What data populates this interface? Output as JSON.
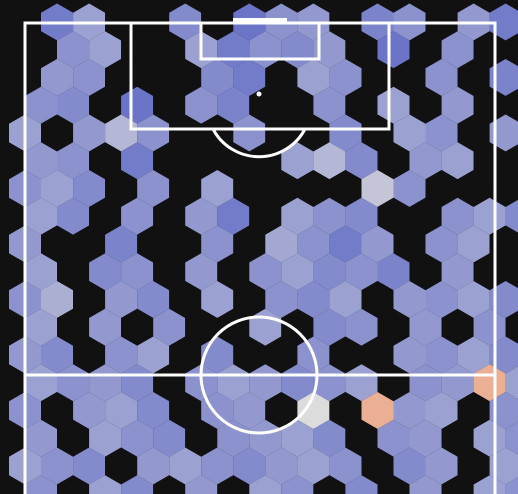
{
  "pitch": {
    "background": "#111111",
    "line_color": "#ffffff",
    "view": "attacking-half-plus-part-of-own-half"
  },
  "heatmap": {
    "type": "hexbin",
    "low_color": "#4a5fd0",
    "mid_color": "#dcdcdc",
    "high_color": "#f0a07a",
    "empty_color": "#111111",
    "rows": [
      "...##.###.##.##.#.#.",
      ".##..#####.#.#..###.",
      ".##...##.##..#.##.#.",
      "##.#.##..#.#.#..#.#.",
      "#.###..#..#.##.#.###",
      "##.#....###.##..#.##",
      "###.#.#....##...#.#.",
      "##.#.##.###..###.##.",
      "#..#..#.####.##.##.#",
      "#.##.#.#####.#....##",
      "##.##.#.###.####.###",
      "#.#.#..#.##.#.#.####",
      "##.##.#..#..####.###",
      "####.######.#####.##",
      "#.###.##.#.###.#.#..",
      "#.###.####.##.#####.",
      "###.#######.##.##..#",
      "#.##.#.##.#.#.##.##."
    ],
    "values": [
      [
        0,
        0.35,
        0.6,
        0,
        0,
        0.45,
        0,
        0.3,
        0.5,
        0.55,
        0,
        0.4,
        0.5,
        0,
        0.55,
        0.35,
        0,
        0.5,
        0,
        0
      ],
      [
        0,
        0.5,
        0.6,
        0,
        0,
        0.6,
        0.35,
        0.5,
        0.45,
        0.55,
        0,
        0.3,
        0,
        0.5,
        0,
        0,
        0.45,
        0.5,
        0.4,
        0
      ],
      [
        0,
        0.55,
        0.5,
        0,
        0,
        0,
        0.45,
        0.35,
        0,
        0.6,
        0.5,
        0,
        0,
        0.5,
        0,
        0.4,
        0.3,
        0,
        0.5,
        0
      ],
      [
        0.5,
        0.45,
        0,
        0.3,
        0,
        0.5,
        0.4,
        0,
        0,
        0.5,
        0,
        0.6,
        0,
        0.55,
        0,
        0,
        0.5,
        0,
        0.6,
        0
      ],
      [
        0.6,
        0,
        0.55,
        0.75,
        0.5,
        0,
        0,
        0.5,
        0,
        0,
        0.45,
        0,
        0.6,
        0.5,
        0,
        0.55,
        0,
        0.5,
        0.45,
        0.6
      ],
      [
        0.55,
        0.5,
        0,
        0.35,
        0,
        0,
        0,
        0,
        0.6,
        0.75,
        0.45,
        0,
        0.55,
        0.6,
        0,
        0,
        0.45,
        0,
        0.5,
        0.35
      ],
      [
        0.5,
        0.6,
        0.45,
        0,
        0.5,
        0,
        0.6,
        0,
        0,
        0,
        0,
        0.85,
        0.5,
        0,
        0,
        0,
        0.55,
        0,
        0.7,
        0
      ],
      [
        0.6,
        0.45,
        0,
        0.5,
        0,
        0.55,
        0.35,
        0,
        0.6,
        0.5,
        0.45,
        0,
        0,
        0.5,
        0.6,
        0.45,
        0,
        0.55,
        0.8,
        0
      ],
      [
        0.55,
        0,
        0,
        0.4,
        0,
        0,
        0.5,
        0,
        0.65,
        0.5,
        0.35,
        0.55,
        0,
        0.5,
        0.6,
        0,
        0.55,
        0.45,
        0,
        0.6
      ],
      [
        0.6,
        0,
        0.45,
        0.5,
        0,
        0.55,
        0,
        0.5,
        0.6,
        0.45,
        0.5,
        0.4,
        0,
        0.55,
        0,
        0,
        0,
        0,
        0.5,
        0.4
      ],
      [
        0.5,
        0.7,
        0,
        0.55,
        0.45,
        0,
        0.6,
        0,
        0.5,
        0.45,
        0.6,
        0,
        0.55,
        0.5,
        0.6,
        0.45,
        0,
        0.6,
        0.45,
        0.5
      ],
      [
        0.6,
        0,
        0.55,
        0,
        0.5,
        0,
        0,
        0.6,
        0,
        0.45,
        0.5,
        0,
        0.55,
        0,
        0.5,
        0,
        0.6,
        0.5,
        0.45,
        0.6
      ],
      [
        0.55,
        0.45,
        0,
        0.5,
        0.6,
        0,
        0.45,
        0,
        0,
        0.5,
        0,
        0,
        0.55,
        0.5,
        0.6,
        0.45,
        0,
        0.5,
        0.6,
        0.55
      ],
      [
        0.6,
        0.5,
        0.55,
        0.45,
        0,
        0.5,
        0.6,
        0.55,
        0.45,
        0.5,
        0.6,
        0,
        0.5,
        0.55,
        1.3,
        0.6,
        0.45,
        0,
        0.5,
        0.6
      ],
      [
        0.5,
        0,
        0.55,
        0.6,
        0.45,
        0,
        0.5,
        0.55,
        0,
        1.0,
        0,
        1.3,
        0.55,
        0.6,
        0,
        0.5,
        0,
        0.55,
        0,
        0
      ],
      [
        0.55,
        0,
        0.6,
        0.5,
        0.45,
        0,
        0.5,
        0.55,
        0.6,
        0.45,
        0,
        0.5,
        0.55,
        0,
        0.6,
        0.5,
        0.45,
        0.6,
        0.5,
        0
      ],
      [
        0.6,
        0.5,
        0.45,
        0,
        0.55,
        0.6,
        0.5,
        0.45,
        0.55,
        0.6,
        0.5,
        0,
        0.45,
        0.55,
        0,
        0.6,
        0.5,
        0,
        0,
        0.55
      ],
      [
        0.5,
        0,
        0.6,
        0.45,
        0,
        0.55,
        0,
        0.6,
        0.5,
        0,
        0.45,
        0,
        0.55,
        0,
        0.6,
        0.5,
        0,
        0.45,
        0.55,
        0
      ]
    ]
  }
}
